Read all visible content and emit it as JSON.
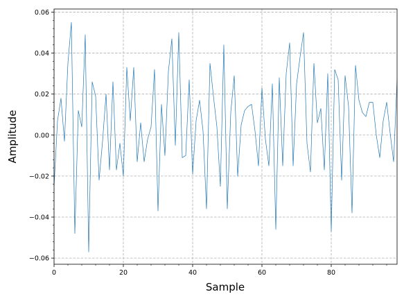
{
  "chart_data": {
    "type": "line",
    "xlabel": "Sample",
    "ylabel": "Amplitude",
    "xlim": [
      0,
      99
    ],
    "ylim": [
      -0.063,
      0.0615
    ],
    "x_ticks": [
      0,
      20,
      40,
      60,
      80
    ],
    "x_tick_labels": [
      "0",
      "20",
      "40",
      "60",
      "80"
    ],
    "y_ticks": [
      -0.06,
      -0.04,
      -0.02,
      0.0,
      0.02,
      0.04,
      0.06
    ],
    "y_tick_labels": [
      "−0.06",
      "−0.04",
      "−0.02",
      "0.00",
      "0.02",
      "0.04",
      "0.06"
    ],
    "grid": true,
    "series": [
      {
        "color": "#1f77b4",
        "x": [
          0,
          1,
          2,
          3,
          4,
          5,
          6,
          7,
          8,
          9,
          10,
          11,
          12,
          13,
          14,
          15,
          16,
          17,
          18,
          19,
          20,
          21,
          22,
          23,
          24,
          25,
          26,
          27,
          28,
          29,
          30,
          31,
          32,
          33,
          34,
          35,
          36,
          37,
          38,
          39,
          40,
          41,
          42,
          43,
          44,
          45,
          46,
          47,
          48,
          49,
          50,
          51,
          52,
          53,
          54,
          55,
          56,
          57,
          58,
          59,
          60,
          61,
          62,
          63,
          64,
          65,
          66,
          67,
          68,
          69,
          70,
          71,
          72,
          73,
          74,
          75,
          76,
          77,
          78,
          79,
          80,
          81,
          82,
          83,
          84,
          85,
          86,
          87,
          88,
          89,
          90,
          91,
          92,
          93,
          94,
          95,
          96,
          97,
          98,
          99
        ],
        "values": [
          -0.025,
          0.007,
          0.018,
          -0.003,
          0.035,
          0.055,
          -0.048,
          0.012,
          0.004,
          0.049,
          -0.057,
          0.026,
          0.019,
          -0.022,
          -0.003,
          0.02,
          -0.017,
          0.026,
          -0.017,
          -0.004,
          -0.02,
          0.033,
          0.007,
          0.033,
          -0.013,
          0.006,
          -0.013,
          -0.002,
          0.004,
          0.032,
          -0.037,
          0.015,
          -0.01,
          0.031,
          0.047,
          -0.005,
          0.05,
          -0.011,
          -0.01,
          0.027,
          -0.019,
          0.007,
          0.017,
          0.002,
          -0.036,
          0.035,
          0.019,
          0.004,
          -0.025,
          0.044,
          -0.036,
          0.011,
          0.029,
          -0.02,
          0.005,
          0.012,
          0.014,
          0.015,
          0.002,
          -0.015,
          0.023,
          -0.002,
          -0.015,
          0.025,
          -0.046,
          0.028,
          -0.015,
          0.03,
          0.045,
          -0.015,
          0.025,
          0.038,
          0.05,
          -0.004,
          -0.018,
          0.035,
          0.006,
          0.013,
          -0.017,
          0.03,
          -0.047,
          0.032,
          0.027,
          -0.022,
          0.029,
          0.014,
          -0.038,
          0.034,
          0.017,
          0.011,
          0.009,
          0.016,
          0.016,
          0.0,
          -0.011,
          0.007,
          0.016,
          0.001,
          -0.013,
          0.027
        ]
      }
    ]
  }
}
